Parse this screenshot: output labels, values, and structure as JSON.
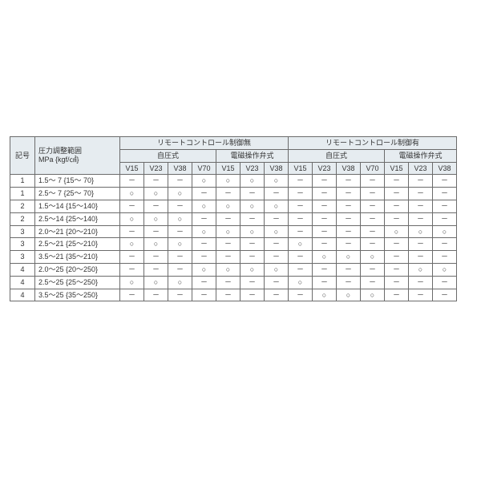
{
  "header": {
    "label": "記号",
    "range": "圧力調整範囲\nMPa {kgf/㎠}",
    "group_no": "リモートコントロール制御無",
    "group_yes": "リモートコントロール制御有",
    "sub_self": "自圧式",
    "sub_sol": "電磁操作弁式",
    "v15": "V15",
    "v23": "V23",
    "v38": "V38",
    "v70": "V70"
  },
  "colors": {
    "header_bg": "#e6ecf0",
    "border": "#6b6b6b",
    "text": "#333333"
  },
  "rows": [
    {
      "label": "1",
      "range": "1.5～ 7 {15～ 70}",
      "c": [
        "－",
        "－",
        "－",
        "○",
        "○",
        "○",
        "○",
        "－",
        "－",
        "－",
        "－",
        "－",
        "－",
        "－"
      ]
    },
    {
      "label": "1",
      "range": "2.5～ 7 {25～ 70}",
      "c": [
        "○",
        "○",
        "○",
        "－",
        "－",
        "－",
        "－",
        "－",
        "－",
        "－",
        "－",
        "－",
        "－",
        "－"
      ]
    },
    {
      "label": "2",
      "range": "1.5～14 {15～140}",
      "c": [
        "－",
        "－",
        "－",
        "○",
        "○",
        "○",
        "○",
        "－",
        "－",
        "－",
        "－",
        "－",
        "－",
        "－"
      ]
    },
    {
      "label": "2",
      "range": "2.5～14 {25～140}",
      "c": [
        "○",
        "○",
        "○",
        "－",
        "－",
        "－",
        "－",
        "－",
        "－",
        "－",
        "－",
        "－",
        "－",
        "－"
      ]
    },
    {
      "label": "3",
      "range": "2.0～21 {20～210}",
      "c": [
        "－",
        "－",
        "－",
        "○",
        "○",
        "○",
        "○",
        "－",
        "－",
        "－",
        "－",
        "○",
        "○",
        "○"
      ]
    },
    {
      "label": "3",
      "range": "2.5～21 {25～210}",
      "c": [
        "○",
        "○",
        "○",
        "－",
        "－",
        "－",
        "－",
        "○",
        "－",
        "－",
        "－",
        "－",
        "－",
        "－"
      ]
    },
    {
      "label": "3",
      "range": "3.5～21 {35～210}",
      "c": [
        "－",
        "－",
        "－",
        "－",
        "－",
        "－",
        "－",
        "－",
        "○",
        "○",
        "○",
        "－",
        "－",
        "－"
      ]
    },
    {
      "label": "4",
      "range": "2.0～25 {20～250}",
      "c": [
        "－",
        "－",
        "－",
        "○",
        "○",
        "○",
        "○",
        "－",
        "－",
        "－",
        "－",
        "－",
        "○",
        "○"
      ]
    },
    {
      "label": "4",
      "range": "2.5～25 {25～250}",
      "c": [
        "○",
        "○",
        "○",
        "－",
        "－",
        "－",
        "－",
        "○",
        "－",
        "－",
        "－",
        "－",
        "－",
        "－"
      ]
    },
    {
      "label": "4",
      "range": "3.5～25 {35～250}",
      "c": [
        "－",
        "－",
        "－",
        "－",
        "－",
        "－",
        "－",
        "－",
        "○",
        "○",
        "○",
        "－",
        "－",
        "－"
      ]
    }
  ]
}
